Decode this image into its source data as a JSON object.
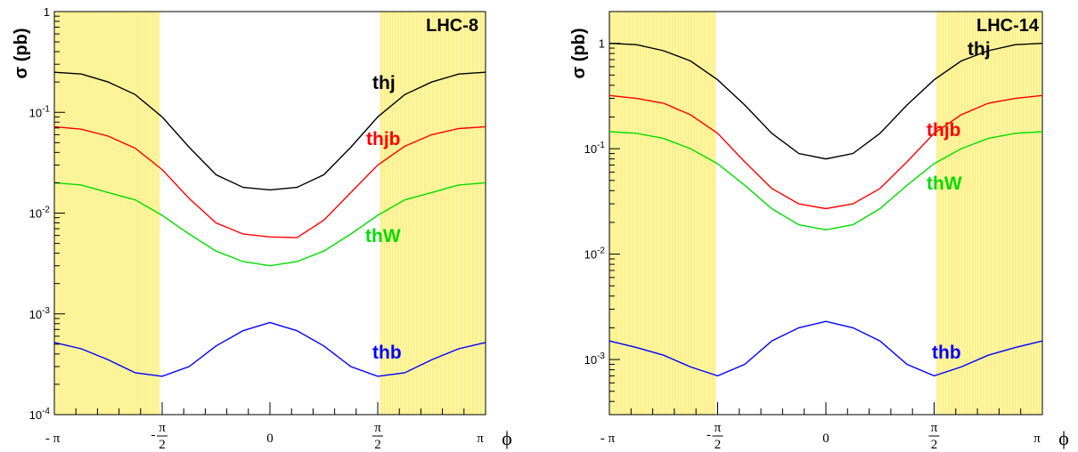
{
  "chart_data": [
    {
      "type": "line",
      "title": "LHC-8",
      "ylabel": "σ (pb)",
      "xlabel": "ϕ",
      "xlim": [
        -3.1416,
        3.1416
      ],
      "ylim": [
        0.0001,
        1
      ],
      "yscale": "log",
      "x_ticks": [
        {
          "value": -3.1416,
          "label": "- π"
        },
        {
          "value": -1.5708,
          "label": "- π/2"
        },
        {
          "value": 0,
          "label": "0"
        },
        {
          "value": 1.5708,
          "label": "π/2"
        },
        {
          "value": 3.1416,
          "label": "π"
        }
      ],
      "y_ticks": [
        {
          "value": 0.0001,
          "label": "10-4"
        },
        {
          "value": 0.001,
          "label": "10-3"
        },
        {
          "value": 0.01,
          "label": "10-2"
        },
        {
          "value": 0.1,
          "label": "10-1"
        },
        {
          "value": 1,
          "label": "1"
        }
      ],
      "excluded_regions": [
        [
          -3.1416,
          -1.6
        ],
        [
          1.6,
          3.1416
        ]
      ],
      "excluded_color": "#fff7a0",
      "x": [
        -3.1416,
        -2.7489,
        -2.3562,
        -1.9635,
        -1.5708,
        -1.1781,
        -0.7854,
        -0.3927,
        0,
        0.3927,
        0.7854,
        1.1781,
        1.5708,
        1.9635,
        2.3562,
        2.7489,
        3.1416
      ],
      "series": [
        {
          "name": "thj",
          "color": "#000000",
          "values": [
            0.25,
            0.24,
            0.2,
            0.15,
            0.09,
            0.045,
            0.024,
            0.018,
            0.017,
            0.018,
            0.024,
            0.045,
            0.09,
            0.15,
            0.2,
            0.24,
            0.25
          ]
        },
        {
          "name": "thjb",
          "color": "#ff0000",
          "values": [
            0.072,
            0.068,
            0.058,
            0.044,
            0.027,
            0.014,
            0.008,
            0.0062,
            0.0058,
            0.0057,
            0.0085,
            0.016,
            0.03,
            0.046,
            0.06,
            0.069,
            0.072
          ]
        },
        {
          "name": "thW",
          "color": "#00dd00",
          "values": [
            0.02,
            0.019,
            0.016,
            0.0135,
            0.0095,
            0.0062,
            0.0042,
            0.0033,
            0.003,
            0.0033,
            0.0042,
            0.0062,
            0.0095,
            0.0135,
            0.016,
            0.019,
            0.02
          ]
        },
        {
          "name": "thb",
          "color": "#0000ff",
          "values": [
            0.00052,
            0.00045,
            0.00035,
            0.00026,
            0.00024,
            0.0003,
            0.00048,
            0.00068,
            0.00082,
            0.00068,
            0.00048,
            0.0003,
            0.00024,
            0.00026,
            0.00035,
            0.00045,
            0.00052
          ]
        }
      ]
    },
    {
      "type": "line",
      "title": "LHC-14",
      "ylabel": "σ (pb)",
      "xlabel": "ϕ",
      "xlim": [
        -3.1416,
        3.1416
      ],
      "ylim": [
        0.0003,
        2
      ],
      "yscale": "log",
      "x_ticks": [
        {
          "value": -3.1416,
          "label": "- π"
        },
        {
          "value": -1.5708,
          "label": "- π/2"
        },
        {
          "value": 0,
          "label": "0"
        },
        {
          "value": 1.5708,
          "label": "π/2"
        },
        {
          "value": 3.1416,
          "label": "π"
        }
      ],
      "y_ticks": [
        {
          "value": 0.001,
          "label": "10-3"
        },
        {
          "value": 0.01,
          "label": "10-2"
        },
        {
          "value": 0.1,
          "label": "10-1"
        },
        {
          "value": 1,
          "label": "1"
        }
      ],
      "excluded_regions": [
        [
          -3.1416,
          -1.6
        ],
        [
          1.6,
          3.1416
        ]
      ],
      "excluded_color": "#fff7a0",
      "x": [
        -3.1416,
        -2.7489,
        -2.3562,
        -1.9635,
        -1.5708,
        -1.1781,
        -0.7854,
        -0.3927,
        0,
        0.3927,
        0.7854,
        1.1781,
        1.5708,
        1.9635,
        2.3562,
        2.7489,
        3.1416
      ],
      "series": [
        {
          "name": "thj",
          "color": "#000000",
          "values": [
            1.0,
            0.97,
            0.85,
            0.68,
            0.45,
            0.26,
            0.14,
            0.09,
            0.08,
            0.09,
            0.14,
            0.26,
            0.45,
            0.68,
            0.85,
            0.97,
            1.0
          ]
        },
        {
          "name": "thjb",
          "color": "#ff0000",
          "values": [
            0.32,
            0.3,
            0.27,
            0.21,
            0.14,
            0.075,
            0.042,
            0.03,
            0.027,
            0.03,
            0.042,
            0.075,
            0.14,
            0.21,
            0.27,
            0.3,
            0.32
          ]
        },
        {
          "name": "thW",
          "color": "#00dd00",
          "values": [
            0.145,
            0.14,
            0.125,
            0.1,
            0.072,
            0.045,
            0.027,
            0.019,
            0.017,
            0.019,
            0.027,
            0.045,
            0.072,
            0.1,
            0.125,
            0.14,
            0.145
          ]
        },
        {
          "name": "thb",
          "color": "#0000ff",
          "values": [
            0.0015,
            0.0013,
            0.0011,
            0.00085,
            0.0007,
            0.0009,
            0.0015,
            0.002,
            0.0023,
            0.002,
            0.0015,
            0.0009,
            0.0007,
            0.00085,
            0.0011,
            0.0013,
            0.0015
          ]
        }
      ]
    }
  ]
}
